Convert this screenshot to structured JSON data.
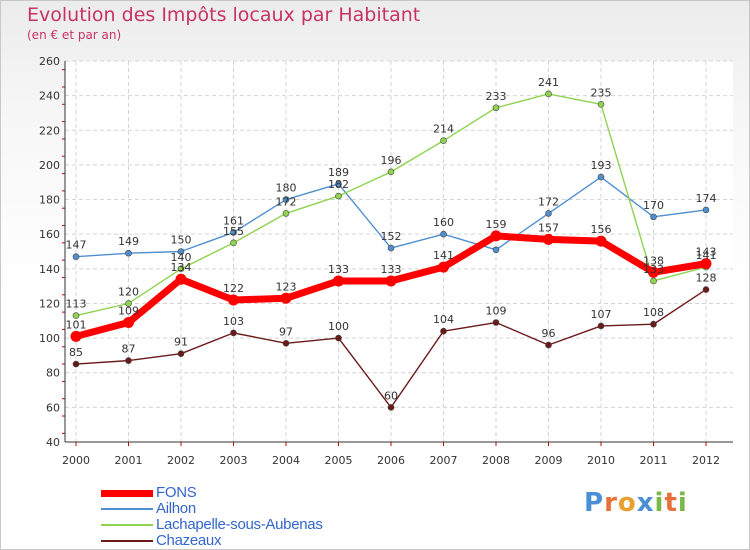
{
  "title": "Evolution des Impôts locaux par Habitant",
  "subtitle": "(en € et par an)",
  "brand": {
    "letters": [
      "P",
      "r",
      "o",
      "x",
      "i",
      "t",
      "i"
    ],
    "colors": [
      "#4a8fd6",
      "#e8703a",
      "#e8a030",
      "#4a8fd6",
      "#7ab648",
      "#e8703a",
      "#7ab648"
    ]
  },
  "chart_data": {
    "type": "line",
    "title": "Evolution des Impôts locaux par Habitant",
    "subtitle": "(en € et par an)",
    "x": [
      "2000",
      "2001",
      "2002",
      "2003",
      "2004",
      "2005",
      "2006",
      "2007",
      "2008",
      "2009",
      "2010",
      "2011",
      "2012"
    ],
    "ylim": [
      40,
      260
    ],
    "yticks": [
      "40",
      "60",
      "80",
      "100",
      "120",
      "140",
      "160",
      "180",
      "200",
      "220",
      "240",
      "260"
    ],
    "grid": true,
    "legend_position": "bottom-left",
    "series": [
      {
        "name": "FONS",
        "color": "#ff0000",
        "values": [
          101,
          109,
          134,
          122,
          123,
          133,
          133,
          141,
          159,
          157,
          156,
          138,
          143
        ]
      },
      {
        "name": "Ailhon",
        "color": "#4f8fd0",
        "values": [
          147,
          149,
          150,
          161,
          180,
          189,
          152,
          160,
          151,
          172,
          193,
          170,
          174
        ]
      },
      {
        "name": "Lachapelle-sous-Aubenas",
        "color": "#8fd34f",
        "values": [
          113,
          120,
          140,
          155,
          172,
          182,
          196,
          214,
          233,
          241,
          235,
          133,
          141
        ]
      },
      {
        "name": "Chazeaux",
        "color": "#6b1a1a",
        "values": [
          85,
          87,
          91,
          103,
          97,
          100,
          60,
          104,
          109,
          96,
          107,
          108,
          128
        ]
      }
    ],
    "data_labels": [
      [
        "101",
        "109",
        "134",
        "122",
        "123",
        "133",
        "133",
        "141",
        "159",
        "157",
        "156",
        "138",
        "143"
      ],
      [
        "147",
        "149",
        "150",
        "161",
        "180",
        "189",
        "152",
        "160",
        "",
        "172",
        "193",
        "170",
        "174"
      ],
      [
        "113",
        "120",
        "140",
        "155",
        "172",
        "182",
        "196",
        "214",
        "233",
        "241",
        "235",
        "133",
        "141"
      ],
      [
        "85",
        "87",
        "91",
        "103",
        "97",
        "100",
        "60",
        "104",
        "109",
        "96",
        "107",
        "108",
        "128"
      ]
    ]
  }
}
